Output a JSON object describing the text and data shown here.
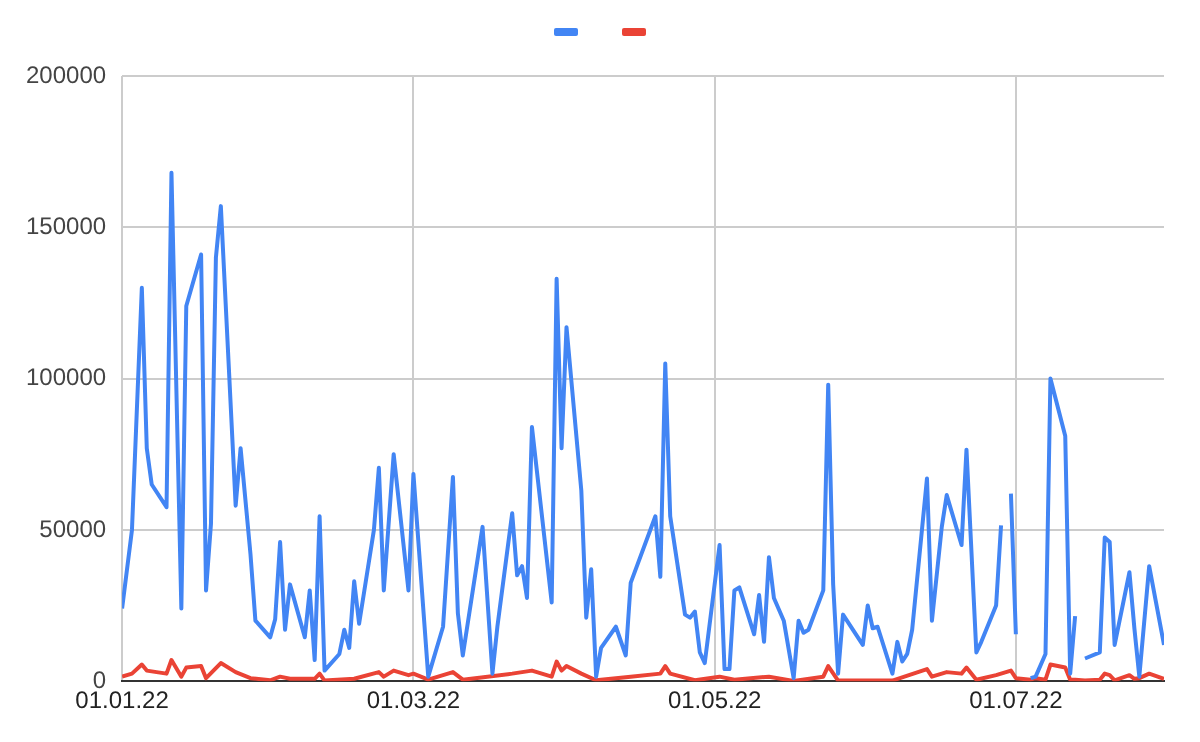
{
  "chart_data": {
    "type": "line",
    "xlim": [
      "2022-01-01",
      "2022-07-31"
    ],
    "xticks": [
      {
        "value": "2022-01-01",
        "label": "01.01.22"
      },
      {
        "value": "2022-03-01",
        "label": "01.03.22"
      },
      {
        "value": "2022-05-01",
        "label": "01.05.22"
      },
      {
        "value": "2022-07-01",
        "label": "01.07.22"
      }
    ],
    "ylim": [
      0,
      200000
    ],
    "yticks": [
      0,
      50000,
      100000,
      150000,
      200000
    ],
    "grid": true,
    "marker": "none",
    "line_style": "solid",
    "series": [
      {
        "color": "#4285f4",
        "x": [
          "2022-01-01",
          "2022-01-03",
          "2022-01-05",
          "2022-01-06",
          "2022-01-07",
          "2022-01-10",
          "2022-01-11",
          "2022-01-13",
          "2022-01-14",
          "2022-01-17",
          "2022-01-18",
          "2022-01-19",
          "2022-01-20",
          "2022-01-21",
          "2022-01-24",
          "2022-01-25",
          "2022-01-27",
          "2022-01-28",
          "2022-01-31",
          "2022-02-01",
          "2022-02-02",
          "2022-02-03",
          "2022-02-04",
          "2022-02-07",
          "2022-02-08",
          "2022-02-09",
          "2022-02-10",
          "2022-02-11",
          "2022-02-14",
          "2022-02-15",
          "2022-02-16",
          "2022-02-17",
          "2022-02-18",
          "2022-02-21",
          "2022-02-22",
          "2022-02-23",
          "2022-02-25",
          "2022-02-28",
          "2022-03-01",
          "2022-03-04",
          "2022-03-07",
          "2022-03-09",
          "2022-03-10",
          "2022-03-11",
          "2022-03-15",
          "2022-03-17",
          "2022-03-18",
          "2022-03-21",
          "2022-03-22",
          "2022-03-23",
          "2022-03-24",
          "2022-03-25",
          "2022-03-29",
          "2022-03-30",
          "2022-03-31",
          "2022-04-01",
          "2022-04-04",
          "2022-04-05",
          "2022-04-06",
          "2022-04-07",
          "2022-04-08",
          "2022-04-11",
          "2022-04-13",
          "2022-04-14",
          "2022-04-19",
          "2022-04-20",
          "2022-04-21",
          "2022-04-22",
          "2022-04-25",
          "2022-04-26",
          "2022-04-27",
          "2022-04-28",
          "2022-04-29",
          "2022-05-02",
          "2022-05-03",
          "2022-05-04",
          "2022-05-05",
          "2022-05-06",
          "2022-05-09",
          "2022-05-10",
          "2022-05-11",
          "2022-05-12",
          "2022-05-13",
          "2022-05-15",
          "2022-05-17",
          "2022-05-18",
          "2022-05-19",
          "2022-05-20",
          "2022-05-23",
          "2022-05-24",
          "2022-05-25",
          "2022-05-26",
          "2022-05-27",
          "2022-05-31",
          "2022-06-01",
          "2022-06-02",
          "2022-06-03",
          "2022-06-06",
          "2022-06-07",
          "2022-06-08",
          "2022-06-09",
          "2022-06-10",
          "2022-06-13",
          "2022-06-14",
          "2022-06-16",
          "2022-06-17",
          "2022-06-20",
          "2022-06-21",
          "2022-06-23",
          "2022-06-24",
          "2022-06-27",
          "2022-06-28",
          "2022-06-29",
          "2022-06-30",
          "2022-07-01",
          "2022-07-02",
          "2022-07-04",
          "2022-07-05",
          "2022-07-07",
          "2022-07-08",
          "2022-07-11",
          "2022-07-12",
          "2022-07-13",
          "2022-07-14",
          "2022-07-15",
          "2022-07-18",
          "2022-07-19",
          "2022-07-20",
          "2022-07-21",
          "2022-07-24",
          "2022-07-25",
          "2022-07-26",
          "2022-07-28",
          "2022-07-31"
        ],
        "values": [
          24000,
          50000,
          130000,
          77000,
          65000,
          57500,
          168000,
          24000,
          124000,
          141000,
          30000,
          52000,
          140000,
          157000,
          58000,
          77000,
          42000,
          20000,
          14500,
          20500,
          46000,
          17000,
          32000,
          14500,
          30000,
          7000,
          54500,
          3500,
          9000,
          17000,
          11000,
          33000,
          19000,
          50000,
          70500,
          30000,
          75000,
          30000,
          68500,
          1500,
          18000,
          67500,
          22500,
          8500,
          51000,
          2500,
          18000,
          55500,
          35000,
          38000,
          27500,
          84000,
          26000,
          133000,
          77000,
          117000,
          63000,
          21000,
          37000,
          1500,
          11000,
          18000,
          8500,
          32500,
          54500,
          34500,
          105000,
          54500,
          22000,
          21000,
          23000,
          9500,
          6000,
          45000,
          4000,
          4000,
          30000,
          31000,
          15500,
          28500,
          13000,
          41000,
          27500,
          20000,
          1000,
          20000,
          16000,
          17000,
          30000,
          98000,
          32000,
          2500,
          22000,
          12000,
          25000,
          17500,
          18000,
          2500,
          13000,
          6500,
          9000,
          17000,
          67000,
          20000,
          51000,
          61500,
          45000,
          76500,
          9500,
          13000,
          25000,
          51500,
          null,
          62000,
          15500,
          null,
          1000,
          1500,
          9000,
          100000,
          81000,
          2500,
          21500,
          null,
          7500,
          9500,
          47500,
          46000,
          12000,
          36000,
          17500,
          1500,
          38000,
          12000
        ]
      },
      {
        "color": "#ea4335",
        "x": [
          "2022-01-01",
          "2022-01-03",
          "2022-01-05",
          "2022-01-06",
          "2022-01-10",
          "2022-01-11",
          "2022-01-13",
          "2022-01-14",
          "2022-01-17",
          "2022-01-18",
          "2022-01-21",
          "2022-01-24",
          "2022-01-27",
          "2022-01-31",
          "2022-02-02",
          "2022-02-04",
          "2022-02-09",
          "2022-02-10",
          "2022-02-11",
          "2022-02-17",
          "2022-02-22",
          "2022-02-23",
          "2022-02-25",
          "2022-02-28",
          "2022-03-01",
          "2022-03-04",
          "2022-03-09",
          "2022-03-11",
          "2022-03-21",
          "2022-03-25",
          "2022-03-29",
          "2022-03-30",
          "2022-03-31",
          "2022-04-01",
          "2022-04-04",
          "2022-04-07",
          "2022-04-14",
          "2022-04-20",
          "2022-04-21",
          "2022-04-22",
          "2022-04-27",
          "2022-05-02",
          "2022-05-05",
          "2022-05-12",
          "2022-05-17",
          "2022-05-23",
          "2022-05-24",
          "2022-05-26",
          "2022-06-06",
          "2022-06-13",
          "2022-06-14",
          "2022-06-17",
          "2022-06-20",
          "2022-06-21",
          "2022-06-23",
          "2022-06-27",
          "2022-06-28",
          "2022-06-30",
          "2022-07-01",
          "2022-07-04",
          "2022-07-05",
          "2022-07-07",
          "2022-07-08",
          "2022-07-11",
          "2022-07-12",
          "2022-07-13",
          "2022-07-15",
          "2022-07-18",
          "2022-07-19",
          "2022-07-20",
          "2022-07-21",
          "2022-07-24",
          "2022-07-25",
          "2022-07-26",
          "2022-07-28",
          "2022-07-31"
        ],
        "values": [
          1500,
          2500,
          5500,
          3500,
          2500,
          7000,
          1500,
          4500,
          5000,
          1000,
          6000,
          3000,
          1000,
          300,
          1500,
          800,
          800,
          2500,
          200,
          800,
          3000,
          1500,
          3500,
          2000,
          2500,
          500,
          3000,
          500,
          2500,
          3500,
          1500,
          6500,
          3500,
          5000,
          2500,
          300,
          1500,
          2500,
          5000,
          2500,
          300,
          1500,
          500,
          1500,
          100,
          1500,
          5000,
          200,
          200,
          4000,
          1500,
          3000,
          2500,
          4500,
          500,
          2000,
          2500,
          3500,
          1000,
          500,
          1000,
          500,
          5500,
          4500,
          500,
          500,
          200,
          500,
          2500,
          2000,
          300,
          2000,
          800,
          1000,
          2500,
          800
        ]
      }
    ]
  }
}
